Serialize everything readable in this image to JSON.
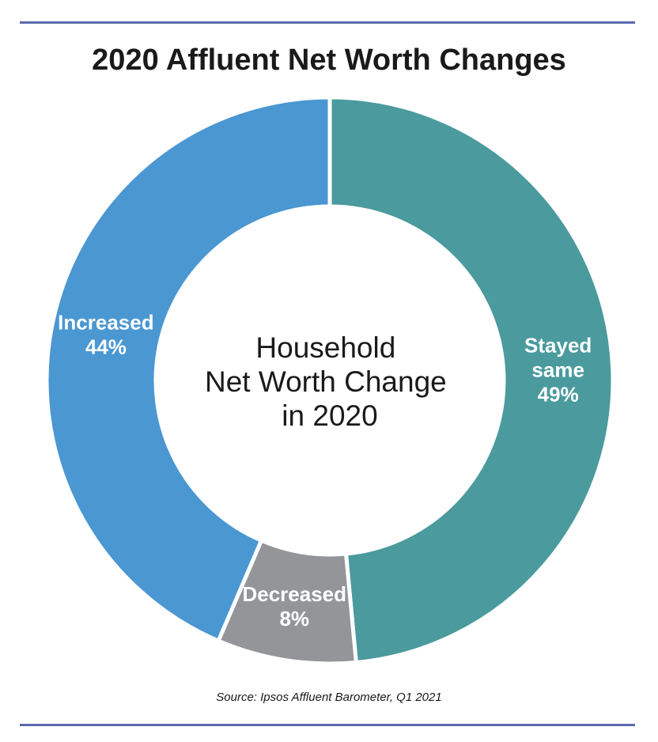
{
  "chart_data": {
    "type": "pie",
    "title": "2020 Affluent Net Worth Changes",
    "center_text": [
      "Household",
      "Net Worth Change",
      "in 2020"
    ],
    "slices": [
      {
        "label": [
          "Stayed",
          "same"
        ],
        "value_label": "49%",
        "value": 49,
        "color": "#4a9a9e"
      },
      {
        "label": [
          "Decreased"
        ],
        "value_label": "8%",
        "value": 8,
        "color": "#939598"
      },
      {
        "label": [
          "Increased"
        ],
        "value_label": "44%",
        "value": 44,
        "color": "#4a97d2"
      }
    ],
    "source": "Source: Ipsos Affluent Barometer, Q1 2021"
  }
}
